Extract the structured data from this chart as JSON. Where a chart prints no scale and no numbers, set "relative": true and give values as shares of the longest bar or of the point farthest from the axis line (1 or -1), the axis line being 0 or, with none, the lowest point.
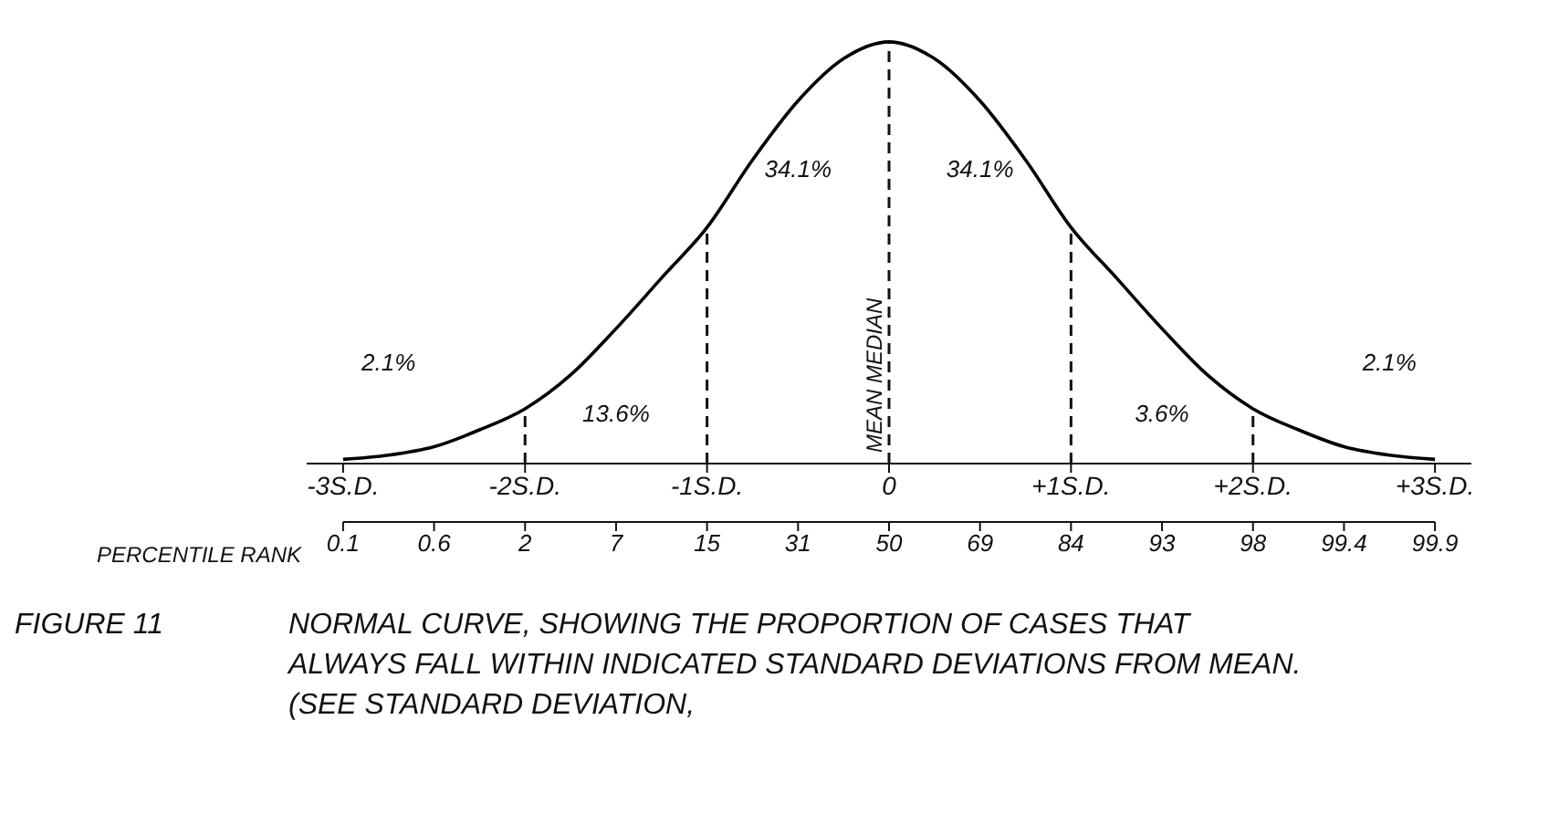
{
  "chart_data": {
    "type": "line",
    "relative": true,
    "title": "FIGURE 11",
    "subtitle": "NORMAL CURVE, SHOWING THE PROPORTION OF CASES THAT ALWAYS FALL WITHIN INDICATED STANDARD DEVIATIONS FROM MEAN. (SEE STANDARD DEVIATION,",
    "x": [
      -3,
      -2.75,
      -2.5,
      -2.25,
      -2,
      -1.75,
      -1.5,
      -1.25,
      -1,
      -0.75,
      -0.5,
      -0.25,
      0,
      0.25,
      0.5,
      0.75,
      1,
      1.25,
      1.5,
      1.75,
      2,
      2.25,
      2.5,
      2.75,
      3
    ],
    "series": [
      {
        "color": "#000000",
        "values": [
          0.01,
          0.02,
          0.04,
          0.08,
          0.13,
          0.21,
          0.32,
          0.44,
          0.56,
          0.72,
          0.86,
          0.96,
          1,
          0.96,
          0.86,
          0.72,
          0.56,
          0.44,
          0.32,
          0.21,
          0.13,
          0.08,
          0.04,
          0.02,
          0.01
        ]
      }
    ],
    "xlim": [
      -3.2,
      3.2
    ],
    "xticks": [
      {
        "value": -3,
        "label": "-3S.D."
      },
      {
        "value": -2,
        "label": "-2S.D."
      },
      {
        "value": -1,
        "label": "-1S.D."
      },
      {
        "value": 0,
        "label": "0"
      },
      {
        "value": 1,
        "label": "+1S.D."
      },
      {
        "value": 2,
        "label": "+2S.D."
      },
      {
        "value": 3,
        "label": "+3S.D."
      }
    ],
    "x2label": "PERCENTILE RANK",
    "ref_lines": [
      {
        "axis": "x",
        "value": -2,
        "line_style": "dashed"
      },
      {
        "axis": "x",
        "value": -1,
        "line_style": "dashed"
      },
      {
        "axis": "x",
        "value": 0,
        "label": "MEAN MEDIAN",
        "line_style": "dashed"
      },
      {
        "axis": "x",
        "value": 1,
        "line_style": "dashed"
      },
      {
        "axis": "x",
        "value": 2,
        "line_style": "dashed"
      }
    ],
    "annotations": [
      "34.1%",
      "34.1%",
      "13.6%",
      "3.6%",
      "2.1%",
      "2.1%",
      "0.1",
      "0.6",
      "2",
      "7",
      "15",
      "31",
      "50",
      "69",
      "84",
      "93",
      "98",
      "99.4",
      "99.9"
    ],
    "marker": "none",
    "line_style": "solid"
  }
}
